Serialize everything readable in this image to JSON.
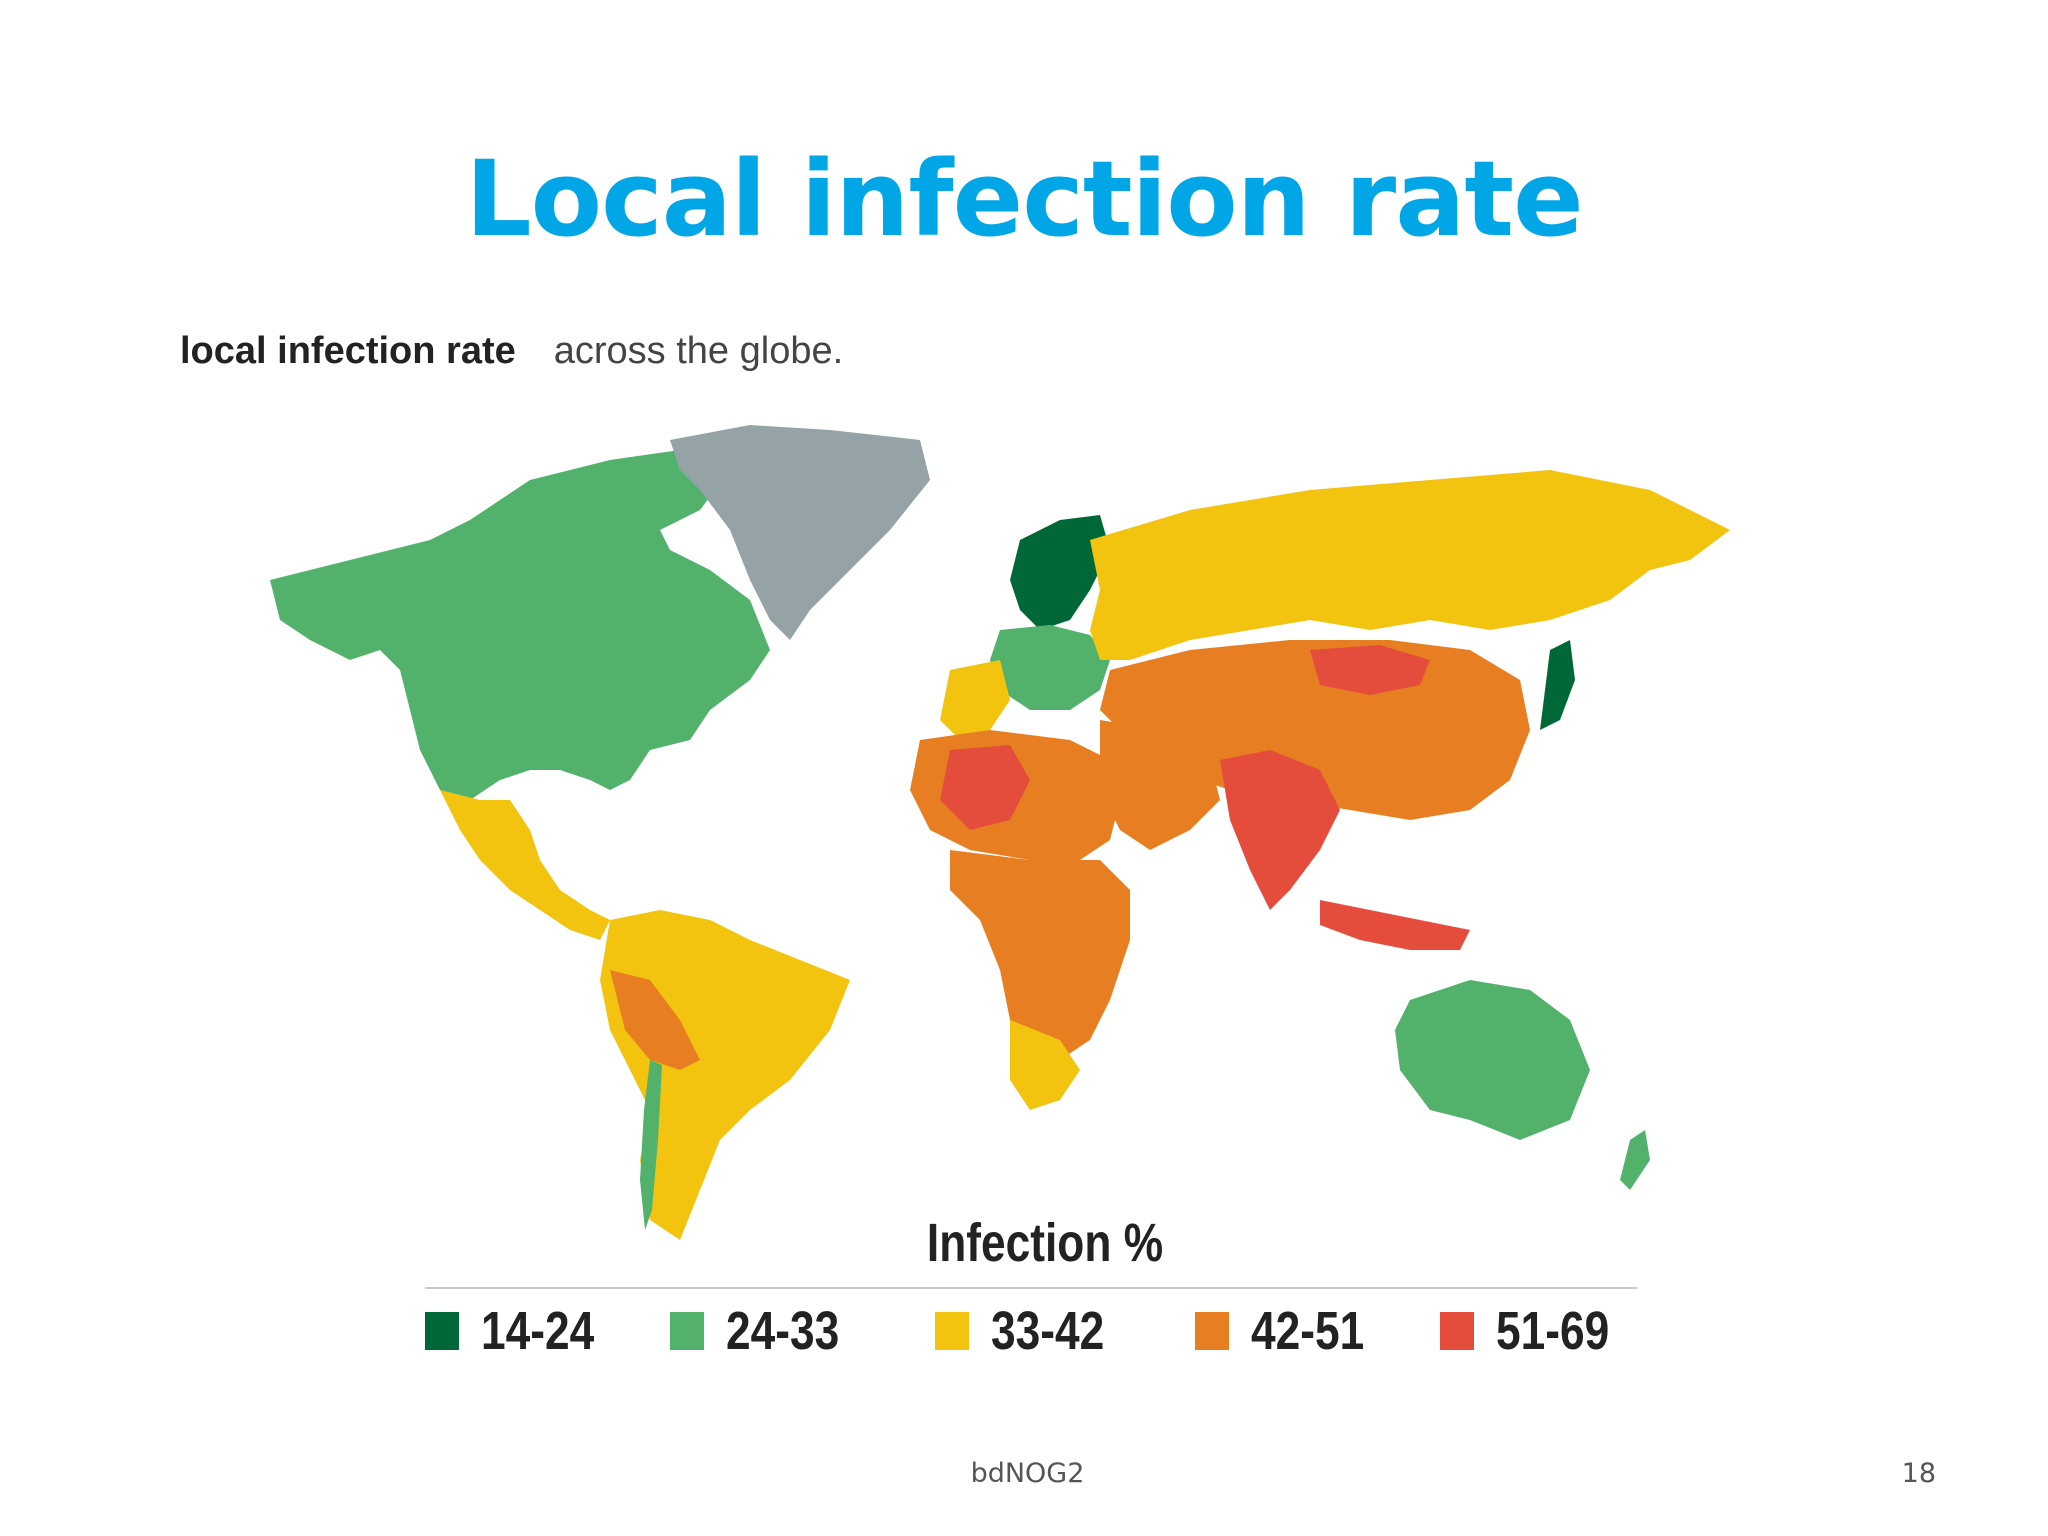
{
  "slide": {
    "title": "Local infection rate",
    "footer_text": "bdNOG2",
    "page_number": "18"
  },
  "caption": {
    "bold": "local infection rate",
    "rest": "across the globe."
  },
  "legend": {
    "title": "Infection %",
    "items": [
      {
        "label": "14-24",
        "color": "#006837"
      },
      {
        "label": "24-33",
        "color": "#52b26b"
      },
      {
        "label": "33-42",
        "color": "#f2c40f"
      },
      {
        "label": "42-51",
        "color": "#e77f22"
      },
      {
        "label": "51-69",
        "color": "#e44c3c"
      }
    ],
    "no_data_color": "#95a3a6"
  }
}
